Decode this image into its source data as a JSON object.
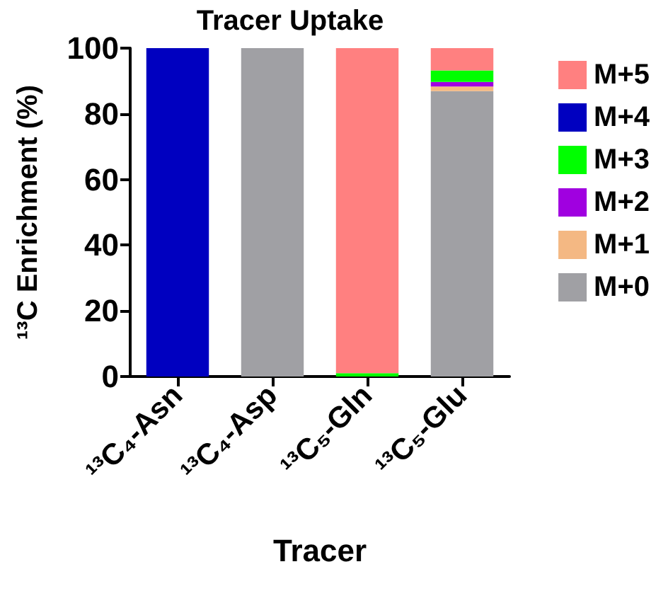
{
  "chart_data": {
    "type": "bar",
    "title": "Tracer Uptake",
    "xlabel": "Tracer",
    "ylabel": "¹³C Enrichment (%)",
    "categories": [
      "¹³C₄-Asn",
      "¹³C₄-Asp",
      "¹³C₅-Gln",
      "¹³C₅-Glu"
    ],
    "stacked": true,
    "series": [
      {
        "name": "M+0",
        "color": "#a0a0a4",
        "values": [
          0,
          100,
          0,
          86.9
        ]
      },
      {
        "name": "M+1",
        "color": "#f4b883",
        "values": [
          0,
          0,
          0,
          1.4
        ]
      },
      {
        "name": "M+2",
        "color": "#a000e0",
        "values": [
          0,
          0,
          0,
          1.4
        ]
      },
      {
        "name": "M+3",
        "color": "#00ff00",
        "values": [
          0,
          0,
          1,
          3.5
        ]
      },
      {
        "name": "M+4",
        "color": "#0000c0",
        "values": [
          100,
          0,
          0,
          0
        ]
      },
      {
        "name": "M+5",
        "color": "#ff8080",
        "values": [
          0,
          0,
          99,
          6.8
        ]
      }
    ],
    "ylim": [
      0,
      100
    ],
    "yticks": [
      0,
      20,
      40,
      60,
      80,
      100
    ],
    "grid": false,
    "legend": "right"
  }
}
